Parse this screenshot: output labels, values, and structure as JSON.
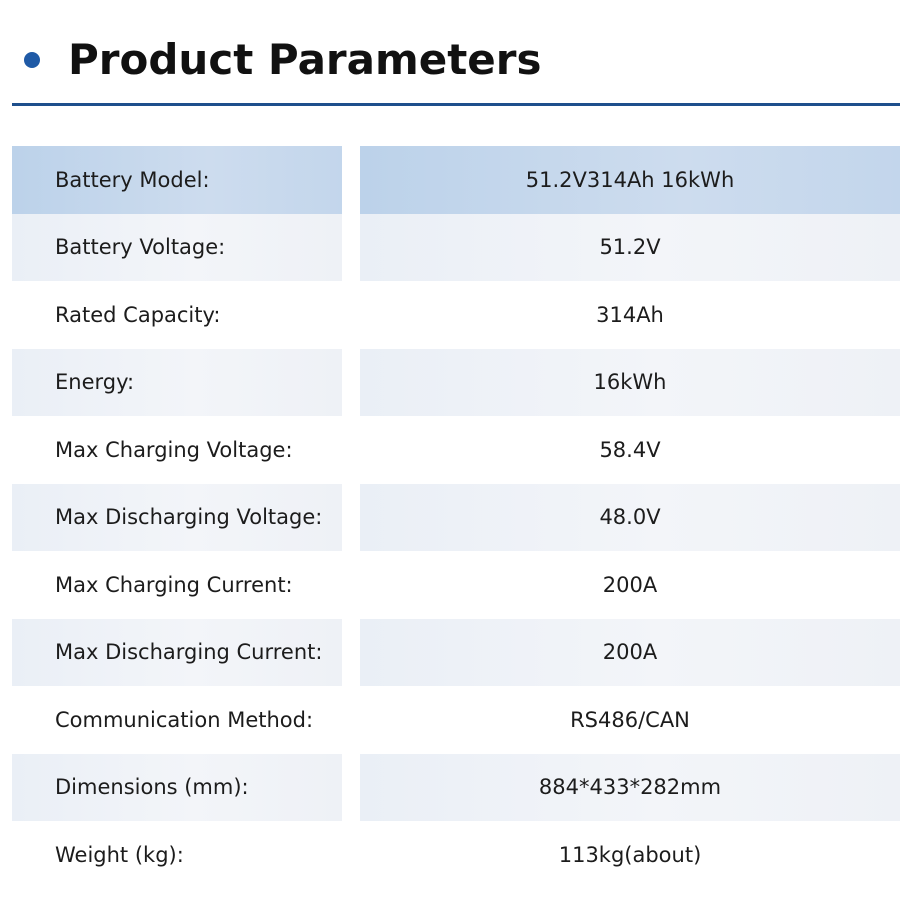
{
  "header": {
    "title": "Product Parameters"
  },
  "colors": {
    "accent": "#1f5aa6",
    "rule": "#1e4f8c",
    "header_row": "#c3d6ec",
    "shaded_row": "#eef1f6"
  },
  "parameters": [
    {
      "label": "Battery Model:",
      "value": "51.2V314Ah 16kWh"
    },
    {
      "label": "Battery Voltage:",
      "value": "51.2V"
    },
    {
      "label": "Rated Capacity:",
      "value": "314Ah"
    },
    {
      "label": "Energy:",
      "value": "16kWh"
    },
    {
      "label": "Max Charging Voltage:",
      "value": "58.4V"
    },
    {
      "label": "Max Discharging Voltage:",
      "value": "48.0V"
    },
    {
      "label": "Max Charging Current:",
      "value": "200A"
    },
    {
      "label": "Max Discharging Current:",
      "value": "200A"
    },
    {
      "label": "Communication Method:",
      "value": "RS486/CAN"
    },
    {
      "label": "Dimensions (mm):",
      "value": "884*433*282mm"
    },
    {
      "label": "Weight (kg):",
      "value": "113kg(about)"
    }
  ]
}
